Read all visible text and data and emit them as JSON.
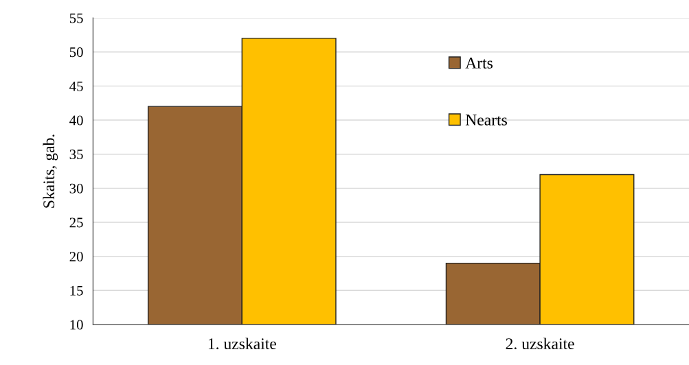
{
  "chart_data": {
    "type": "bar",
    "ylabel": "Skaits, gab.",
    "categories": [
      "1. uzskaite",
      "2. uzskaite"
    ],
    "series": [
      {
        "name": "Arts",
        "color": "#996633",
        "values": [
          42,
          19
        ]
      },
      {
        "name": "Nearts",
        "color": "#ffc000",
        "values": [
          52,
          32
        ]
      }
    ],
    "ylim": [
      10,
      55
    ],
    "yticks": [
      10,
      15,
      20,
      25,
      30,
      35,
      40,
      45,
      50,
      55
    ],
    "grid": "y",
    "legend": "top right"
  }
}
